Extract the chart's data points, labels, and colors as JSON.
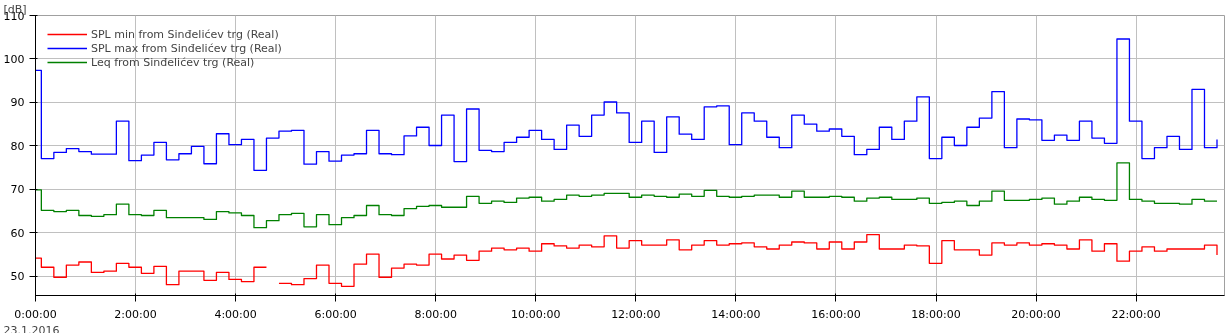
{
  "chart_data": {
    "type": "step",
    "ylabel": "[dB]",
    "annotations": [
      "23.1.2016"
    ],
    "x": [
      "2016-01-23T00:00",
      "2016-01-23T00:07",
      "2016-01-23T00:22",
      "2016-01-23T00:37",
      "2016-01-23T00:52",
      "2016-01-23T01:07",
      "2016-01-23T01:22",
      "2016-01-23T01:37",
      "2016-01-23T01:52",
      "2016-01-23T02:07",
      "2016-01-23T02:22",
      "2016-01-23T02:37",
      "2016-01-23T02:52",
      "2016-01-23T03:07",
      "2016-01-23T03:22",
      "2016-01-23T03:37",
      "2016-01-23T03:52",
      "2016-01-23T04:07",
      "2016-01-23T04:22",
      "2016-01-23T04:37",
      "2016-01-23T04:52",
      "2016-01-23T05:07",
      "2016-01-23T05:22",
      "2016-01-23T05:37",
      "2016-01-23T05:52",
      "2016-01-23T06:07",
      "2016-01-23T06:22",
      "2016-01-23T06:37",
      "2016-01-23T06:52",
      "2016-01-23T07:07",
      "2016-01-23T07:22",
      "2016-01-23T07:37",
      "2016-01-23T07:52",
      "2016-01-23T08:07",
      "2016-01-23T08:22",
      "2016-01-23T08:37",
      "2016-01-23T08:52",
      "2016-01-23T09:07",
      "2016-01-23T09:22",
      "2016-01-23T09:37",
      "2016-01-23T09:52",
      "2016-01-23T10:07",
      "2016-01-23T10:22",
      "2016-01-23T10:37",
      "2016-01-23T10:52",
      "2016-01-23T11:07",
      "2016-01-23T11:22",
      "2016-01-23T11:37",
      "2016-01-23T11:52",
      "2016-01-23T12:07",
      "2016-01-23T12:22",
      "2016-01-23T12:37",
      "2016-01-23T12:52",
      "2016-01-23T13:07",
      "2016-01-23T13:22",
      "2016-01-23T13:37",
      "2016-01-23T13:52",
      "2016-01-23T14:07",
      "2016-01-23T14:22",
      "2016-01-23T14:37",
      "2016-01-23T14:52",
      "2016-01-23T15:07",
      "2016-01-23T15:22",
      "2016-01-23T15:37",
      "2016-01-23T15:52",
      "2016-01-23T16:07",
      "2016-01-23T16:22",
      "2016-01-23T16:37",
      "2016-01-23T16:52",
      "2016-01-23T17:07",
      "2016-01-23T17:22",
      "2016-01-23T17:37",
      "2016-01-23T17:52",
      "2016-01-23T18:07",
      "2016-01-23T18:22",
      "2016-01-23T18:37",
      "2016-01-23T18:52",
      "2016-01-23T19:07",
      "2016-01-23T19:22",
      "2016-01-23T19:37",
      "2016-01-23T19:52",
      "2016-01-23T20:07",
      "2016-01-23T20:22",
      "2016-01-23T20:37",
      "2016-01-23T20:52",
      "2016-01-23T21:07",
      "2016-01-23T21:22",
      "2016-01-23T21:37",
      "2016-01-23T21:52",
      "2016-01-23T22:07",
      "2016-01-23T22:22",
      "2016-01-23T22:37",
      "2016-01-23T22:52",
      "2016-01-23T23:07",
      "2016-01-23T23:22",
      "2016-01-23T23:37"
    ],
    "series": [
      {
        "name": "SPL min from Sinđelićev trg (Real)",
        "color": "#ff0000",
        "values": [
          54.2,
          52.1,
          49.8,
          52.6,
          53.3,
          50.9,
          51.2,
          53.0,
          52.1,
          50.7,
          52.3,
          48.1,
          51.2,
          51.2,
          49.1,
          50.9,
          49.3,
          48.8,
          52.1,
          null,
          48.4,
          48.1,
          49.5,
          52.6,
          48.4,
          47.7,
          52.8,
          55.1,
          49.8,
          51.9,
          52.8,
          52.6,
          55.1,
          54.0,
          54.9,
          53.7,
          55.8,
          56.5,
          56.1,
          56.5,
          55.8,
          57.5,
          57.0,
          56.5,
          57.2,
          56.8,
          59.3,
          56.5,
          58.2,
          57.2,
          57.2,
          58.4,
          56.1,
          57.2,
          58.2,
          57.2,
          57.5,
          57.7,
          56.8,
          56.3,
          57.2,
          57.9,
          57.7,
          56.3,
          57.9,
          56.3,
          57.9,
          59.6,
          56.3,
          56.3,
          57.2,
          57.0,
          53.0,
          58.2,
          56.1,
          56.1,
          54.9,
          57.7,
          57.2,
          57.7,
          57.2,
          57.5,
          57.2,
          56.3,
          58.4,
          55.8,
          57.5,
          53.5,
          55.8,
          56.8,
          55.8,
          56.3,
          56.3,
          56.3,
          57.2,
          54.9
        ]
      },
      {
        "name": "SPL max from Sinđelićev trg (Real)",
        "color": "#0000ff",
        "values": [
          97.4,
          77.1,
          78.5,
          79.4,
          78.7,
          78.1,
          78.1,
          85.7,
          76.6,
          77.9,
          80.8,
          76.8,
          78.2,
          79.9,
          75.9,
          82.8,
          80.3,
          81.5,
          74.4,
          81.8,
          83.4,
          83.6,
          75.8,
          78.7,
          76.5,
          77.9,
          78.2,
          83.6,
          78.2,
          78.0,
          82.3,
          84.3,
          80.1,
          87.1,
          76.4,
          88.5,
          79.0,
          78.7,
          80.8,
          82.0,
          83.6,
          81.5,
          79.2,
          84.8,
          82.2,
          87.1,
          90.1,
          87.6,
          80.8,
          85.7,
          78.5,
          86.7,
          82.7,
          81.5,
          89.0,
          89.2,
          80.3,
          87.6,
          85.7,
          82.0,
          79.6,
          87.1,
          85.0,
          83.4,
          83.9,
          82.2,
          78.0,
          79.2,
          84.3,
          81.5,
          85.7,
          91.3,
          77.1,
          82.0,
          80.1,
          84.3,
          86.4,
          92.5,
          79.6,
          86.2,
          86.0,
          81.3,
          82.5,
          81.3,
          85.7,
          81.8,
          80.6,
          104.6,
          85.7,
          77.1,
          79.6,
          82.2,
          79.2,
          93.0,
          79.6,
          81.5
        ]
      },
      {
        "name": "Leq from Sinđelićev trg (Real)",
        "color": "#008000",
        "values": [
          69.9,
          65.2,
          64.9,
          65.2,
          64.0,
          63.8,
          64.2,
          66.6,
          64.2,
          64.0,
          65.2,
          63.5,
          63.5,
          63.5,
          63.1,
          64.9,
          64.6,
          64.0,
          61.2,
          62.8,
          64.2,
          64.5,
          61.4,
          64.2,
          61.9,
          63.5,
          64.0,
          66.3,
          64.2,
          64.0,
          65.6,
          66.1,
          66.3,
          65.9,
          65.9,
          68.4,
          66.8,
          67.3,
          67.0,
          68.0,
          68.2,
          67.3,
          67.7,
          68.7,
          68.4,
          68.7,
          69.1,
          69.1,
          68.2,
          68.7,
          68.4,
          68.2,
          68.9,
          68.4,
          69.8,
          68.4,
          68.2,
          68.4,
          68.7,
          68.7,
          68.2,
          69.6,
          68.2,
          68.2,
          68.4,
          68.2,
          67.3,
          68.0,
          68.2,
          67.7,
          67.7,
          68.0,
          66.8,
          67.0,
          67.3,
          66.3,
          67.3,
          69.6,
          67.5,
          67.5,
          67.7,
          68.0,
          66.6,
          67.3,
          68.2,
          67.7,
          67.5,
          76.1,
          67.7,
          67.3,
          66.8,
          66.8,
          66.6,
          67.7,
          67.3,
          67.3
        ]
      }
    ],
    "xlim": [
      "2016-01-23T00:00",
      "2016-01-23T23:46"
    ],
    "xticks": [
      {
        "value": "2016-01-23T00:00",
        "label": "0:00:00"
      },
      {
        "value": "2016-01-23T02:00",
        "label": "2:00:00"
      },
      {
        "value": "2016-01-23T04:00",
        "label": "4:00:00"
      },
      {
        "value": "2016-01-23T06:00",
        "label": "6:00:00"
      },
      {
        "value": "2016-01-23T08:00",
        "label": "8:00:00"
      },
      {
        "value": "2016-01-23T10:00",
        "label": "10:00:00"
      },
      {
        "value": "2016-01-23T12:00",
        "label": "12:00:00"
      },
      {
        "value": "2016-01-23T14:00",
        "label": "14:00:00"
      },
      {
        "value": "2016-01-23T16:00",
        "label": "16:00:00"
      },
      {
        "value": "2016-01-23T18:00",
        "label": "18:00:00"
      },
      {
        "value": "2016-01-23T20:00",
        "label": "20:00:00"
      },
      {
        "value": "2016-01-23T22:00",
        "label": "22:00:00"
      }
    ],
    "ylim": [
      45.6,
      110
    ],
    "yticks": [
      50,
      60,
      70,
      80,
      90,
      100,
      110
    ],
    "grid": true,
    "legend": "top left",
    "line_style": "solid"
  }
}
